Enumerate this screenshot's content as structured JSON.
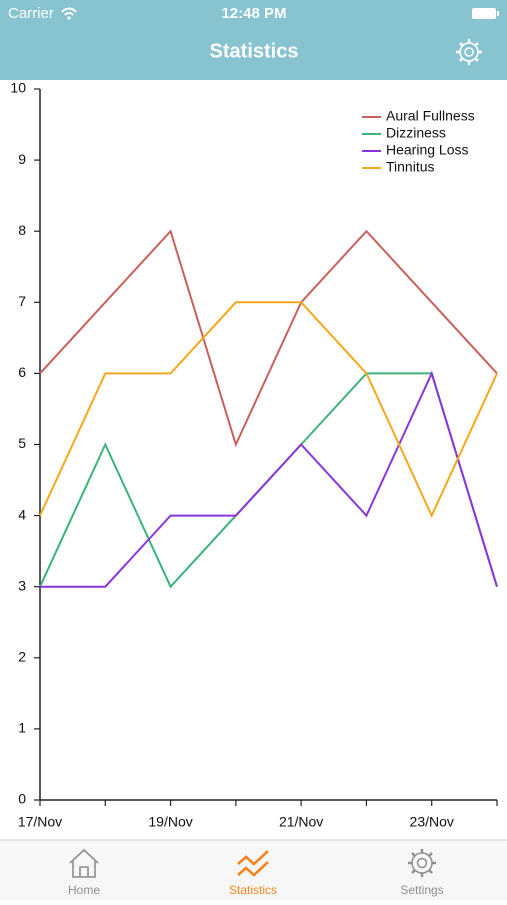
{
  "status_bar": {
    "carrier": "Carrier",
    "time": "12:48 PM"
  },
  "header": {
    "title": "Statistics"
  },
  "tabs": [
    {
      "label": "Home"
    },
    {
      "label": "Statistics"
    },
    {
      "label": "Settings"
    }
  ],
  "chart_data": {
    "type": "line",
    "categories": [
      "17/Nov",
      null,
      "19/Nov",
      null,
      "21/Nov",
      null,
      "23/Nov",
      null
    ],
    "series": [
      {
        "name": "Aural Fullness",
        "color": "#c8605c",
        "values": [
          6,
          7,
          8,
          5,
          7,
          8,
          7,
          6
        ]
      },
      {
        "name": "Dizziness",
        "color": "#3db37a",
        "values": [
          3,
          5,
          3,
          4,
          5,
          6,
          6,
          3
        ]
      },
      {
        "name": "Hearing Loss",
        "color": "#8a35dc",
        "values": [
          3,
          3,
          4,
          4,
          5,
          4,
          6,
          3
        ]
      },
      {
        "name": "Tinnitus",
        "color": "#f5a81e",
        "values": [
          4,
          6,
          6,
          7,
          7,
          6,
          4,
          6
        ]
      }
    ],
    "ylim": [
      0,
      10
    ],
    "yticks": [
      0,
      1,
      2,
      3,
      4,
      5,
      6,
      7,
      8,
      9,
      10
    ],
    "grid": false,
    "legend": "top-right"
  }
}
